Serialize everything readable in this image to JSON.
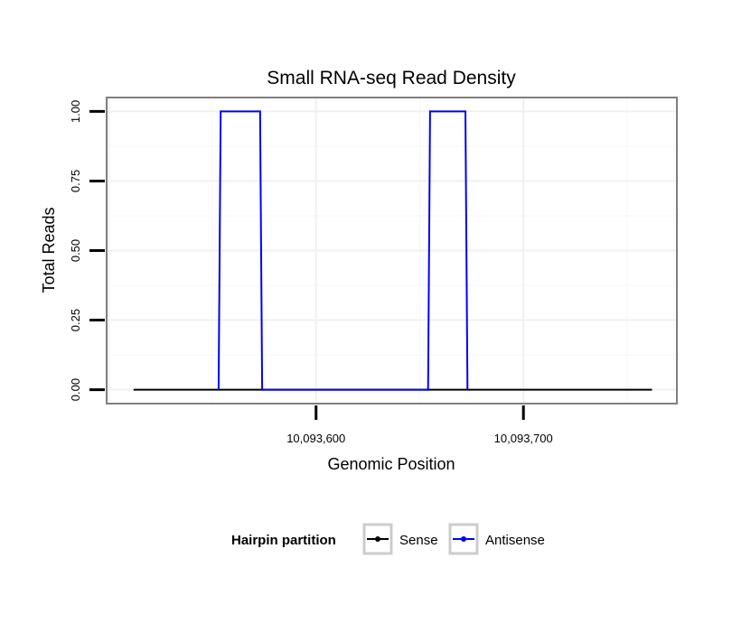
{
  "chart_data": {
    "type": "line",
    "title": "Small RNA-seq Read Density",
    "xlabel": "Genomic Position",
    "ylabel": "Total Reads",
    "xlim": [
      10093499,
      10093774
    ],
    "ylim": [
      -0.05,
      1.05
    ],
    "x_ticks": [
      10093600,
      10093700
    ],
    "x_tick_labels": [
      "10,093,600",
      "10,093,700"
    ],
    "y_ticks": [
      0,
      0.25,
      0.5,
      0.75,
      1
    ],
    "y_tick_labels": [
      "0.00",
      "0.25",
      "0.50",
      "0.75",
      "1.00"
    ],
    "grid": true,
    "legend": {
      "title": "Hairpin partition",
      "placement": "bottom",
      "entries": [
        "Sense",
        "Antisense"
      ]
    },
    "series": [
      {
        "name": "Sense",
        "color": "#000000",
        "x": [
          10093512,
          10093762
        ],
        "values": [
          0,
          0
        ]
      },
      {
        "name": "Antisense",
        "color": "#0000ff",
        "x": [
          10093553,
          10093554,
          10093573,
          10093574,
          10093654,
          10093655,
          10093672,
          10093673
        ],
        "values": [
          0,
          1,
          1,
          0,
          0,
          1,
          1,
          0
        ]
      }
    ]
  }
}
